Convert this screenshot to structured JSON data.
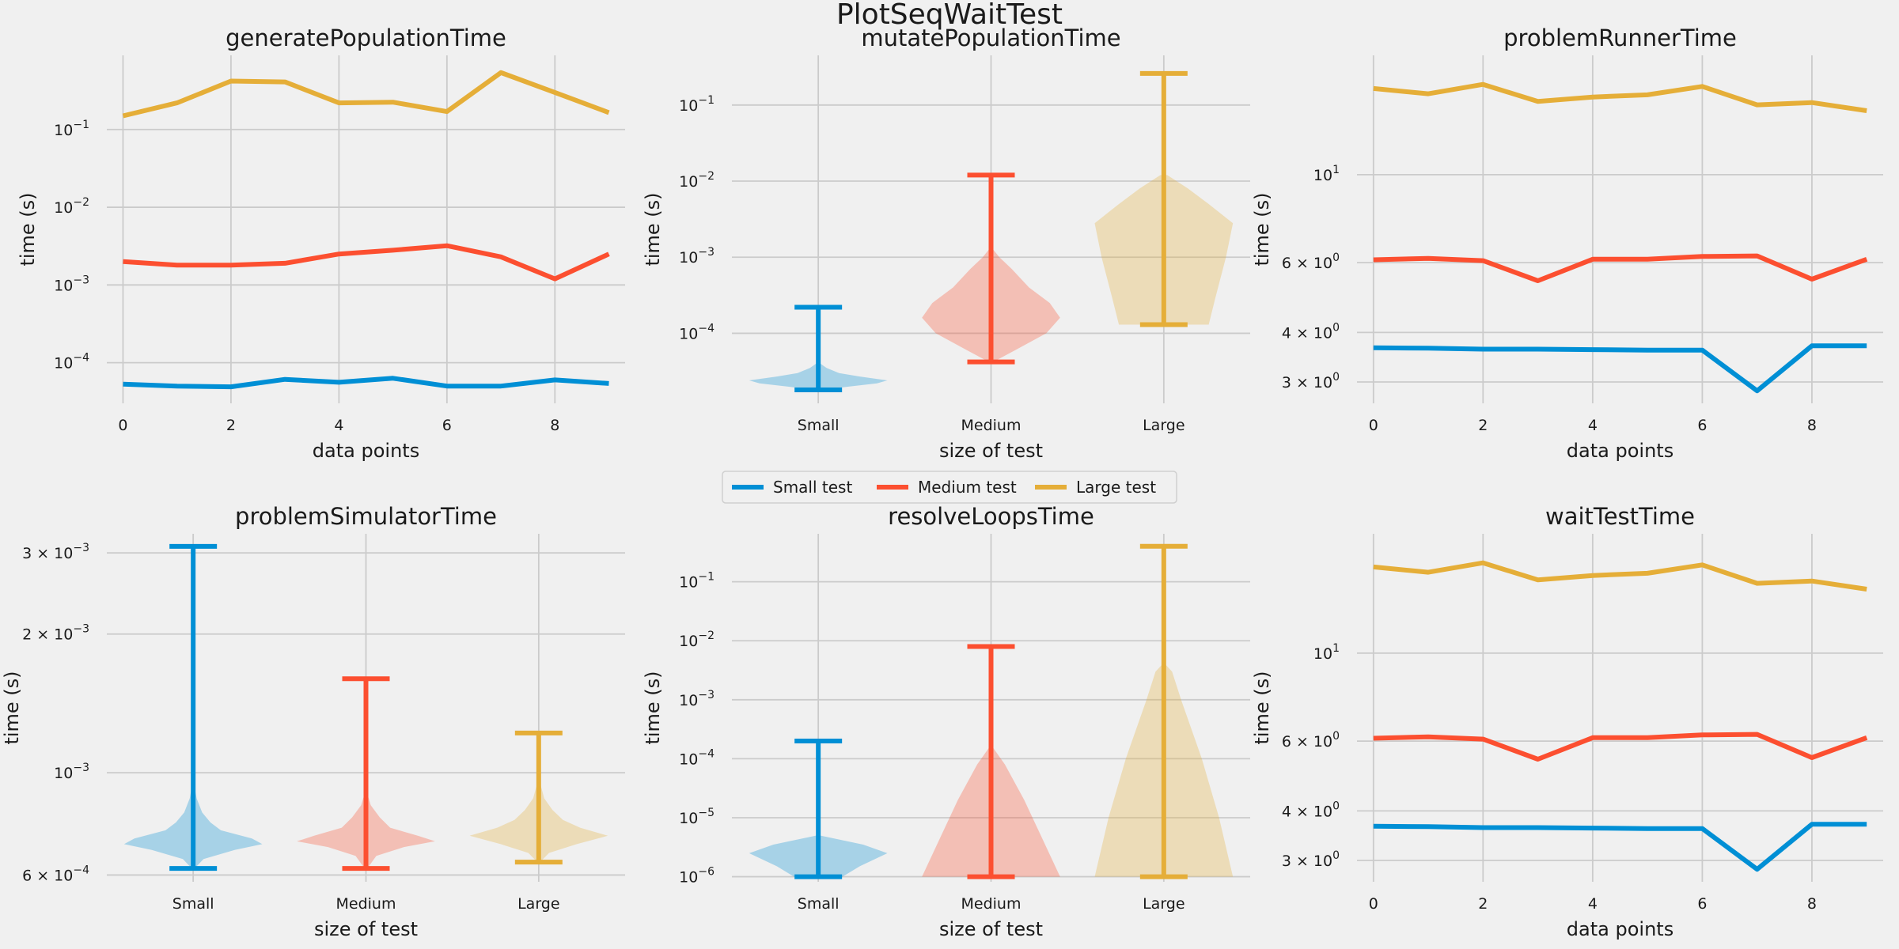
{
  "figure": {
    "suptitle": "PlotSeqWaitTest"
  },
  "legend": {
    "placement": "center, between rows",
    "entries": [
      {
        "label": "Small test",
        "color": "#008fd5"
      },
      {
        "label": "Medium test",
        "color": "#fc4f30"
      },
      {
        "label": "Large test",
        "color": "#e5ae38"
      }
    ]
  },
  "chart_data": [
    {
      "type": "line",
      "title": "generatePopulationTime",
      "xlabel": "data points",
      "ylabel": "time (s)",
      "yscale": "log",
      "grid": true,
      "x": [
        0,
        1,
        2,
        3,
        4,
        5,
        6,
        7,
        8,
        9
      ],
      "xticks": [
        "0",
        "2",
        "4",
        "6",
        "8"
      ],
      "xtick_values": [
        0,
        2,
        4,
        6,
        8
      ],
      "ylim": [
        3e-05,
        0.9
      ],
      "yticks": [
        {
          "value": 0.0001,
          "base": "10",
          "exp": "−4"
        },
        {
          "value": 0.001,
          "base": "10",
          "exp": "−3"
        },
        {
          "value": 0.01,
          "base": "10",
          "exp": "−2"
        },
        {
          "value": 0.1,
          "base": "10",
          "exp": "−1"
        }
      ],
      "series": [
        {
          "color": "#008fd5",
          "values": [
            5.3e-05,
            5e-05,
            4.9e-05,
            6.1e-05,
            5.6e-05,
            6.3e-05,
            5e-05,
            5e-05,
            6e-05,
            5.4e-05
          ]
        },
        {
          "color": "#fc4f30",
          "values": [
            0.002,
            0.0018,
            0.0018,
            0.0019,
            0.0025,
            0.0028,
            0.0032,
            0.0023,
            0.0012,
            0.0025
          ]
        },
        {
          "color": "#e5ae38",
          "values": [
            0.15,
            0.22,
            0.42,
            0.41,
            0.22,
            0.225,
            0.17,
            0.54,
            0.3,
            0.165
          ]
        }
      ]
    },
    {
      "type": "violin",
      "title": "mutatePopulationTime",
      "xlabel": "size of test",
      "ylabel": "time (s)",
      "yscale": "log",
      "grid": true,
      "categories": [
        "Small",
        "Medium",
        "Large"
      ],
      "ylim": [
        1.2e-05,
        0.45
      ],
      "yticks": [
        {
          "value": 0.0001,
          "base": "10",
          "exp": "−4"
        },
        {
          "value": 0.001,
          "base": "10",
          "exp": "−3"
        },
        {
          "value": 0.01,
          "base": "10",
          "exp": "−2"
        },
        {
          "value": 0.1,
          "base": "10",
          "exp": "−1"
        }
      ],
      "violins": [
        {
          "color": "#008fd5",
          "min": 1.8e-05,
          "max": 0.00022,
          "shape": [
            [
              1.8e-05,
              0.05
            ],
            [
              2e-05,
              0.45
            ],
            [
              2.2e-05,
              0.85
            ],
            [
              2.4e-05,
              1.0
            ],
            [
              2.7e-05,
              0.6
            ],
            [
              3e-05,
              0.3
            ],
            [
              3.5e-05,
              0.12
            ],
            [
              4e-05,
              0.03
            ]
          ]
        },
        {
          "color": "#fc4f30",
          "min": 4.2e-05,
          "max": 0.012,
          "shape": [
            [
              4.2e-05,
              0.03
            ],
            [
              6e-05,
              0.35
            ],
            [
              0.0001,
              0.8
            ],
            [
              0.00016,
              1.0
            ],
            [
              0.00025,
              0.85
            ],
            [
              0.0004,
              0.55
            ],
            [
              0.0007,
              0.3
            ],
            [
              0.001,
              0.12
            ],
            [
              0.0013,
              0.02
            ]
          ]
        },
        {
          "color": "#e5ae38",
          "min": 0.00013,
          "max": 0.26,
          "shape": [
            [
              0.00013,
              0.65
            ],
            [
              0.0003,
              0.75
            ],
            [
              0.001,
              0.9
            ],
            [
              0.0028,
              1.0
            ],
            [
              0.005,
              0.65
            ],
            [
              0.008,
              0.35
            ],
            [
              0.012,
              0.05
            ]
          ]
        }
      ]
    },
    {
      "type": "line",
      "title": "problemRunnerTime",
      "xlabel": "data points",
      "ylabel": "time (s)",
      "yscale": "log",
      "grid": true,
      "x": [
        0,
        1,
        2,
        3,
        4,
        5,
        6,
        7,
        8,
        9
      ],
      "xticks": [
        "0",
        "2",
        "4",
        "6",
        "8"
      ],
      "xtick_values": [
        0,
        2,
        4,
        6,
        8
      ],
      "ylim": [
        2.65,
        20
      ],
      "yticks": [
        {
          "value": 3,
          "base": "3 × 10",
          "exp": "0"
        },
        {
          "value": 4,
          "base": "4 × 10",
          "exp": "0"
        },
        {
          "value": 6,
          "base": "6 × 10",
          "exp": "0"
        },
        {
          "value": 10,
          "base": "10",
          "exp": "1"
        }
      ],
      "series": [
        {
          "color": "#008fd5",
          "values": [
            3.66,
            3.65,
            3.63,
            3.63,
            3.62,
            3.61,
            3.61,
            2.85,
            3.7,
            3.7
          ]
        },
        {
          "color": "#fc4f30",
          "values": [
            6.1,
            6.15,
            6.07,
            5.4,
            6.12,
            6.12,
            6.22,
            6.24,
            5.45,
            6.12
          ]
        },
        {
          "color": "#e5ae38",
          "values": [
            16.5,
            16.0,
            16.9,
            15.3,
            15.7,
            15.9,
            16.7,
            15.0,
            15.2,
            14.5
          ]
        }
      ]
    },
    {
      "type": "violin",
      "title": "problemSimulatorTime",
      "xlabel": "size of test",
      "ylabel": "time (s)",
      "yscale": "log",
      "grid": true,
      "categories": [
        "Small",
        "Medium",
        "Large"
      ],
      "ylim": [
        0.00058,
        0.0033
      ],
      "yticks": [
        {
          "value": 0.0006,
          "base": "6 × 10",
          "exp": "−4"
        },
        {
          "value": 0.001,
          "base": "10",
          "exp": "−3"
        },
        {
          "value": 0.002,
          "base": "2 × 10",
          "exp": "−3"
        },
        {
          "value": 0.003,
          "base": "3 × 10",
          "exp": "−3"
        }
      ],
      "violins": [
        {
          "color": "#008fd5",
          "min": 0.00062,
          "max": 0.0031,
          "shape": [
            [
              0.00062,
              0.02
            ],
            [
              0.00065,
              0.15
            ],
            [
              0.00068,
              0.6
            ],
            [
              0.0007,
              1.0
            ],
            [
              0.00072,
              0.85
            ],
            [
              0.00075,
              0.4
            ],
            [
              0.00078,
              0.25
            ],
            [
              0.00082,
              0.13
            ],
            [
              0.00088,
              0.05
            ],
            [
              0.00095,
              0.01
            ]
          ]
        },
        {
          "color": "#fc4f30",
          "min": 0.00062,
          "max": 0.0016,
          "shape": [
            [
              0.00062,
              0.02
            ],
            [
              0.00066,
              0.15
            ],
            [
              0.00069,
              0.55
            ],
            [
              0.00071,
              1.0
            ],
            [
              0.00073,
              0.75
            ],
            [
              0.00076,
              0.35
            ],
            [
              0.0008,
              0.2
            ],
            [
              0.00085,
              0.07
            ],
            [
              0.0009,
              0.02
            ]
          ]
        },
        {
          "color": "#e5ae38",
          "min": 0.00064,
          "max": 0.00122,
          "shape": [
            [
              0.00064,
              0.02
            ],
            [
              0.00067,
              0.15
            ],
            [
              0.0007,
              0.55
            ],
            [
              0.00073,
              1.0
            ],
            [
              0.00076,
              0.6
            ],
            [
              0.00079,
              0.35
            ],
            [
              0.00083,
              0.2
            ],
            [
              0.00088,
              0.08
            ],
            [
              0.00095,
              0.02
            ]
          ]
        }
      ]
    },
    {
      "type": "violin",
      "title": "resolveLoopsTime",
      "xlabel": "size of test",
      "ylabel": "time (s)",
      "yscale": "log",
      "grid": true,
      "categories": [
        "Small",
        "Medium",
        "Large"
      ],
      "ylim": [
        8.2e-07,
        0.65
      ],
      "yticks": [
        {
          "value": 1e-06,
          "base": "10",
          "exp": "−6"
        },
        {
          "value": 1e-05,
          "base": "10",
          "exp": "−5"
        },
        {
          "value": 0.0001,
          "base": "10",
          "exp": "−4"
        },
        {
          "value": 0.001,
          "base": "10",
          "exp": "−3"
        },
        {
          "value": 0.01,
          "base": "10",
          "exp": "−2"
        },
        {
          "value": 0.1,
          "base": "10",
          "exp": "−1"
        }
      ],
      "violins": [
        {
          "color": "#008fd5",
          "min": 1e-06,
          "max": 0.0002,
          "shape": [
            [
              1e-06,
              0.35
            ],
            [
              1.5e-06,
              0.6
            ],
            [
              2.5e-06,
              1.0
            ],
            [
              3.5e-06,
              0.65
            ],
            [
              5e-06,
              0.02
            ]
          ]
        },
        {
          "color": "#fc4f30",
          "min": 1e-06,
          "max": 0.008,
          "shape": [
            [
              1e-06,
              1.0
            ],
            [
              5e-06,
              0.72
            ],
            [
              2e-05,
              0.48
            ],
            [
              8e-05,
              0.2
            ],
            [
              0.00016,
              0.02
            ]
          ]
        },
        {
          "color": "#e5ae38",
          "min": 1e-06,
          "max": 0.4,
          "shape": [
            [
              1e-06,
              1.0
            ],
            [
              1e-05,
              0.8
            ],
            [
              0.0001,
              0.55
            ],
            [
              0.001,
              0.25
            ],
            [
              0.003,
              0.12
            ],
            [
              0.004,
              0.02
            ]
          ]
        }
      ]
    },
    {
      "type": "line",
      "title": "waitTestTime",
      "xlabel": "data points",
      "ylabel": "time (s)",
      "yscale": "log",
      "grid": true,
      "x": [
        0,
        1,
        2,
        3,
        4,
        5,
        6,
        7,
        8,
        9
      ],
      "xticks": [
        "0",
        "2",
        "4",
        "6",
        "8"
      ],
      "xtick_values": [
        0,
        2,
        4,
        6,
        8
      ],
      "ylim": [
        2.65,
        20
      ],
      "yticks": [
        {
          "value": 3,
          "base": "3 × 10",
          "exp": "0"
        },
        {
          "value": 4,
          "base": "4 × 10",
          "exp": "0"
        },
        {
          "value": 6,
          "base": "6 × 10",
          "exp": "0"
        },
        {
          "value": 10,
          "base": "10",
          "exp": "1"
        }
      ],
      "series": [
        {
          "color": "#008fd5",
          "values": [
            3.66,
            3.65,
            3.63,
            3.63,
            3.62,
            3.61,
            3.61,
            2.85,
            3.7,
            3.7
          ]
        },
        {
          "color": "#fc4f30",
          "values": [
            6.1,
            6.15,
            6.07,
            5.4,
            6.12,
            6.12,
            6.22,
            6.24,
            5.45,
            6.12
          ]
        },
        {
          "color": "#e5ae38",
          "values": [
            16.5,
            16.0,
            16.9,
            15.3,
            15.7,
            15.9,
            16.7,
            15.0,
            15.2,
            14.5
          ]
        }
      ]
    }
  ]
}
